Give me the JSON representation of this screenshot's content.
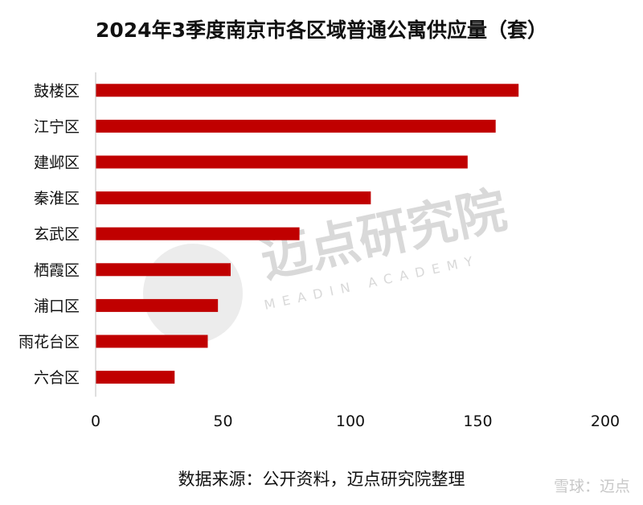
{
  "title": "2024年3季度南京市各区域普通公寓供应量（套）",
  "source": "数据来源：公开资料，迈点研究院整理",
  "watermark": {
    "logo_cn": "迈点研究院",
    "logo_en": "MEADIN ACADEMY",
    "brand": "雪球：迈点"
  },
  "colors": {
    "bar": "#c00000",
    "axis": "#bfbfbf",
    "text": "#111111"
  },
  "chart_data": {
    "type": "bar",
    "orientation": "horizontal",
    "title": "2024年3季度南京市各区域普通公寓供应量（套）",
    "categories": [
      "鼓楼区",
      "江宁区",
      "建邺区",
      "秦淮区",
      "玄武区",
      "栖霞区",
      "浦口区",
      "雨花台区",
      "六合区"
    ],
    "values": [
      166,
      157,
      146,
      108,
      80,
      53,
      48,
      44,
      31
    ],
    "xlim": [
      0,
      200
    ],
    "xticks": [
      0,
      50,
      100,
      150,
      200
    ],
    "xlabel": "",
    "ylabel": "",
    "grid": false,
    "legend": "none"
  }
}
